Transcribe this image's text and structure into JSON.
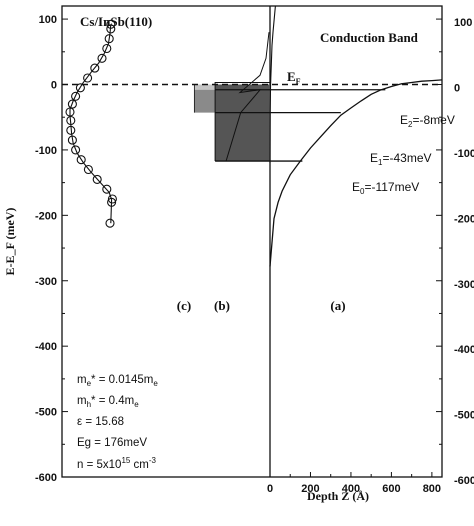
{
  "chart_data": {
    "type": "line",
    "title": "Cs/InSb(110)",
    "panel_title_right": "Conduction Band",
    "ylabel": "E-E_F (meV)",
    "xlabel": "Depth Z (Å)",
    "ylim": [
      -600,
      120
    ],
    "xlim_depth": [
      0,
      850
    ],
    "yticks": [
      100,
      0,
      -100,
      -200,
      -300,
      -400,
      -500,
      -600
    ],
    "ytick_labels": [
      "100",
      "0",
      "-100",
      "-200",
      "-300",
      "-400",
      "-500",
      "-600"
    ],
    "right_tick_labels": [
      "100",
      "0",
      "-100",
      "-200",
      "-300",
      "-400",
      "-500",
      "-600"
    ],
    "xticks": [
      0,
      200,
      400,
      600,
      800
    ],
    "xtick_labels": [
      "0",
      "200",
      "400",
      "600",
      "800"
    ],
    "panel_labels": [
      "(c)",
      "(b)",
      "(a)"
    ],
    "fermi_label": "E",
    "fermi_sub": "F",
    "fermi_level": 0,
    "subband_labels": [
      {
        "prefix": "E",
        "sub": "2",
        "suffix": "=-8meV"
      },
      {
        "prefix": "E",
        "sub": "1",
        "suffix": "=-43meV"
      },
      {
        "prefix": "E",
        "sub": "0",
        "suffix": "=-117meV"
      }
    ],
    "subbands": [
      {
        "name": "E2",
        "energy": -8,
        "z_end": 570
      },
      {
        "name": "E1",
        "energy": -43,
        "z_end": 350
      },
      {
        "name": "E0",
        "energy": -117,
        "z_end": 160
      }
    ],
    "band_edge": {
      "z": [
        0,
        20,
        40,
        60,
        100,
        150,
        200,
        250,
        300,
        350,
        400,
        450,
        500,
        550,
        600,
        650,
        700,
        750,
        800,
        850
      ],
      "e": [
        -278,
        -205,
        -180,
        -163,
        -138,
        -117,
        -97,
        -80,
        -63,
        -47,
        -36,
        -25,
        -15,
        -8,
        -3,
        1,
        3,
        5,
        6,
        7
      ]
    },
    "series": [
      {
        "values": [
          {
            "e": -212,
            "x": 0.5
          },
          {
            "e": -180,
            "x": 0.52
          },
          {
            "e": -175,
            "x": 0.53
          },
          {
            "e": -160,
            "x": 0.46
          },
          {
            "e": -145,
            "x": 0.34
          },
          {
            "e": -130,
            "x": 0.23
          },
          {
            "e": -115,
            "x": 0.14
          },
          {
            "e": -100,
            "x": 0.07
          },
          {
            "e": -85,
            "x": 0.03
          },
          {
            "e": -70,
            "x": 0.01
          },
          {
            "e": -55,
            "x": 0.01
          },
          {
            "e": -42,
            "x": 0.0
          },
          {
            "e": -30,
            "x": 0.03
          },
          {
            "e": -18,
            "x": 0.07
          },
          {
            "e": -5,
            "x": 0.13
          },
          {
            "e": 10,
            "x": 0.22
          },
          {
            "e": 25,
            "x": 0.31
          },
          {
            "e": 40,
            "x": 0.4
          },
          {
            "e": 55,
            "x": 0.46
          },
          {
            "e": 70,
            "x": 0.49
          },
          {
            "e": 85,
            "x": 0.51
          },
          {
            "e": 92,
            "x": 0.51
          }
        ]
      },
      {
        "values": [
          {
            "e": -212,
            "x": 0.51
          },
          {
            "e": -176,
            "x": 0.52
          },
          {
            "e": -165,
            "x": 0.49
          },
          {
            "e": -150,
            "x": 0.38
          },
          {
            "e": -135,
            "x": 0.27
          },
          {
            "e": -120,
            "x": 0.17
          },
          {
            "e": -105,
            "x": 0.09
          },
          {
            "e": -90,
            "x": 0.04
          },
          {
            "e": -75,
            "x": 0.02
          },
          {
            "e": -60,
            "x": 0.01
          },
          {
            "e": -48,
            "x": 0.0
          },
          {
            "e": -38,
            "x": 0.0
          },
          {
            "e": -25,
            "x": 0.04
          },
          {
            "e": -12,
            "x": 0.09
          },
          {
            "e": 2,
            "x": 0.16
          },
          {
            "e": 18,
            "x": 0.26
          },
          {
            "e": 33,
            "x": 0.36
          },
          {
            "e": 48,
            "x": 0.43
          },
          {
            "e": 62,
            "x": 0.48
          },
          {
            "e": 78,
            "x": 0.5
          },
          {
            "e": 92,
            "x": 0.51
          }
        ]
      },
      {
        "values": [
          {
            "e": -117,
            "x": 0.36
          },
          {
            "e": -43,
            "x": 0.24
          },
          {
            "e": -8,
            "x": 0.08
          }
        ]
      },
      {
        "values": [
          {
            "e": -120,
            "x": 0.0
          },
          {
            "e": -70,
            "x": 0.2
          },
          {
            "e": -40,
            "x": 0.4
          },
          {
            "e": -20,
            "x": 0.6
          },
          {
            "e": -5,
            "x": 0.9
          },
          {
            "e": 10,
            "x": 1.4
          },
          {
            "e": 30,
            "x": 2.2
          },
          {
            "e": 60,
            "x": 3.4
          },
          {
            "e": 80,
            "x": 5.0
          },
          {
            "e": 100,
            "x": 7.0
          },
          {
            "e": 120,
            "x": 9.0
          }
        ]
      }
    ],
    "params": [
      {
        "prefix": "m",
        "sub": "e",
        "mid": "* = 0.0145m",
        "sub2": "e",
        "suffix": ""
      },
      {
        "prefix": "m",
        "sub": "h",
        "mid": "* = 0.4m",
        "sub2": "e",
        "suffix": ""
      },
      {
        "prefix": "ε = 15.68",
        "sub": "",
        "mid": "",
        "sub2": "",
        "suffix": ""
      },
      {
        "prefix": "Eg = 176meV",
        "sub": "",
        "mid": "",
        "sub2": "",
        "suffix": ""
      },
      {
        "prefix": "n = 5x10",
        "sup": "15",
        "mid": " cm",
        "sup2": "-3",
        "suffix": ""
      }
    ]
  },
  "colors": {
    "foreground": "#111111",
    "fill_dark": "#555555",
    "fill_mid": "#8a8a8a",
    "fill_light": "#c4c4c4"
  }
}
